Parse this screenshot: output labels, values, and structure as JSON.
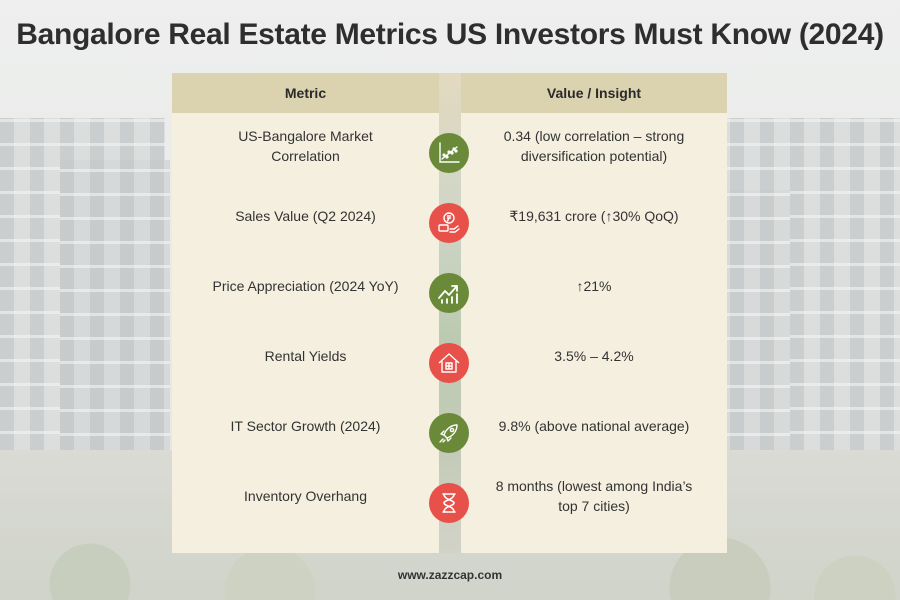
{
  "title": "Bangalore Real Estate Metrics US Investors Must Know (2024)",
  "table": {
    "headers": [
      "Metric",
      "Value / Insight"
    ],
    "rows": [
      {
        "metric": "US-Bangalore Market Correlation",
        "value": "0.34 (low correlation – strong diversification potential)",
        "icon": "scatter-chart-icon",
        "icon_color": "#6a8a3a"
      },
      {
        "metric": "Sales Value (Q2 2024)",
        "value": "₹19,631 crore (↑30% QoQ)",
        "icon": "money-icon",
        "icon_color": "#e8504a"
      },
      {
        "metric": "Price Appreciation (2024 YoY)",
        "value": "↑21%",
        "icon": "trend-up-icon",
        "icon_color": "#6a8a3a"
      },
      {
        "metric": "Rental Yields",
        "value": "3.5% – 4.2%",
        "icon": "house-icon",
        "icon_color": "#e8504a"
      },
      {
        "metric": "IT Sector Growth (2024)",
        "value": "9.8% (above national average)",
        "icon": "rocket-icon",
        "icon_color": "#6a8a3a"
      },
      {
        "metric": "Inventory Overhang",
        "value": "8 months (lowest among India’s top 7 cities)",
        "icon": "hourglass-icon",
        "icon_color": "#e8504a"
      }
    ]
  },
  "footer": "www.zazzcap.com",
  "colors": {
    "header_bg": "#dbd2b0",
    "cell_bg": "#f4efdf",
    "green": "#6a8a3a",
    "red": "#e8504a"
  }
}
